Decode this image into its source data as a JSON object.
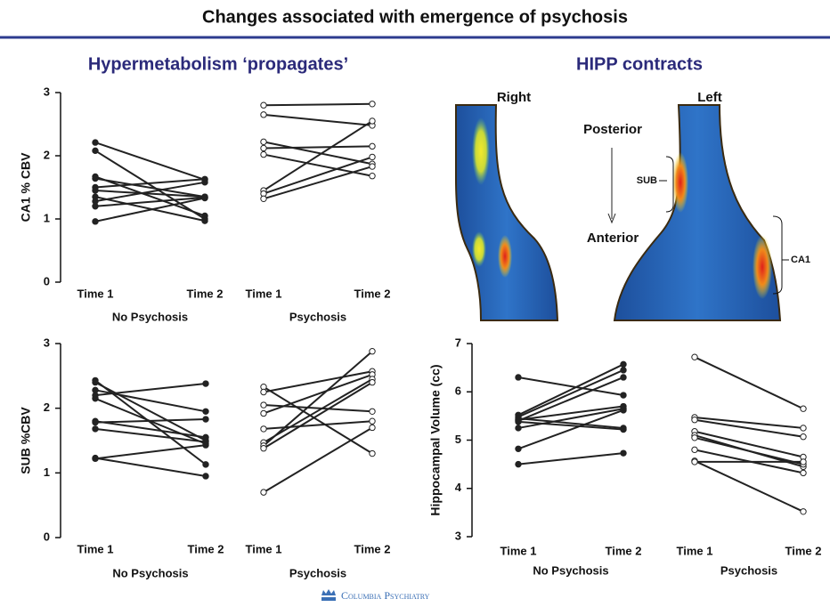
{
  "header": {
    "title": "Changes associated with emergence of psychosis"
  },
  "panels": [
    "Hypermetabolism ‘propagates’",
    "HIPP contracts"
  ],
  "figure": {
    "right": "Right",
    "left": "Left",
    "posterior": "Posterior",
    "anterior": "Anterior",
    "sub": "SUB",
    "ca1": "CA1"
  },
  "footer": "Columbia Psychiatry",
  "chart_data": [
    {
      "type": "slopegraph",
      "ylabel": "CA1 % CBV",
      "ylim": [
        0,
        3
      ],
      "yticks": [
        0,
        1,
        2,
        3
      ],
      "groups": [
        {
          "name": "No Psychosis",
          "categories": [
            "Time 1",
            "Time 2"
          ],
          "marker": "filled",
          "pairs": [
            [
              2.21,
              1.62
            ],
            [
              2.08,
              1.0
            ],
            [
              1.67,
              1.05
            ],
            [
              1.64,
              1.35
            ],
            [
              1.5,
              1.63
            ],
            [
              1.45,
              1.35
            ],
            [
              1.35,
              0.97
            ],
            [
              1.28,
              1.58
            ],
            [
              1.2,
              1.34
            ],
            [
              0.96,
              1.33
            ]
          ]
        },
        {
          "name": "Psychosis",
          "categories": [
            "Time 1",
            "Time 2"
          ],
          "marker": "open",
          "pairs": [
            [
              2.8,
              2.82
            ],
            [
              2.65,
              2.48
            ],
            [
              2.22,
              1.87
            ],
            [
              2.12,
              2.15
            ],
            [
              2.02,
              1.68
            ],
            [
              1.45,
              2.55
            ],
            [
              1.4,
              1.98
            ],
            [
              1.32,
              1.83
            ]
          ]
        }
      ]
    },
    {
      "type": "slopegraph",
      "ylabel": "SUB %CBV",
      "ylim": [
        0,
        3
      ],
      "yticks": [
        0,
        1,
        2,
        3
      ],
      "groups": [
        {
          "name": "No Psychosis",
          "categories": [
            "Time 1",
            "Time 2"
          ],
          "marker": "filled",
          "pairs": [
            [
              2.43,
              1.13
            ],
            [
              2.4,
              1.5
            ],
            [
              2.28,
              1.95
            ],
            [
              2.2,
              2.38
            ],
            [
              2.15,
              1.45
            ],
            [
              1.8,
              1.55
            ],
            [
              1.78,
              1.83
            ],
            [
              1.68,
              1.48
            ],
            [
              1.23,
              0.95
            ],
            [
              1.22,
              1.43
            ]
          ]
        },
        {
          "name": "Psychosis",
          "categories": [
            "Time 1",
            "Time 2"
          ],
          "marker": "open",
          "pairs": [
            [
              2.33,
              1.3
            ],
            [
              2.25,
              2.57
            ],
            [
              2.05,
              1.95
            ],
            [
              1.92,
              2.52
            ],
            [
              1.68,
              1.8
            ],
            [
              1.47,
              2.45
            ],
            [
              1.42,
              2.88
            ],
            [
              1.38,
              2.4
            ],
            [
              0.7,
              1.7
            ]
          ]
        }
      ]
    },
    {
      "type": "slopegraph",
      "ylabel": "Hippocampal Volume (cc)",
      "ylim": [
        3,
        7
      ],
      "yticks": [
        3,
        4,
        5,
        6,
        7
      ],
      "groups": [
        {
          "name": "No Psychosis",
          "categories": [
            "Time 1",
            "Time 2"
          ],
          "marker": "filled",
          "pairs": [
            [
              6.3,
              5.93
            ],
            [
              5.52,
              6.57
            ],
            [
              5.48,
              6.45
            ],
            [
              5.45,
              5.25
            ],
            [
              5.42,
              5.7
            ],
            [
              5.4,
              6.3
            ],
            [
              5.38,
              5.22
            ],
            [
              5.25,
              5.65
            ],
            [
              4.82,
              5.62
            ],
            [
              4.5,
              4.73
            ]
          ]
        },
        {
          "name": "Psychosis",
          "categories": [
            "Time 1",
            "Time 2"
          ],
          "marker": "open",
          "pairs": [
            [
              6.72,
              5.65
            ],
            [
              5.47,
              5.25
            ],
            [
              5.42,
              5.07
            ],
            [
              5.18,
              4.65
            ],
            [
              5.1,
              4.45
            ],
            [
              5.05,
              4.5
            ],
            [
              4.8,
              4.32
            ],
            [
              4.57,
              3.52
            ],
            [
              4.55,
              4.55
            ]
          ]
        }
      ]
    }
  ]
}
